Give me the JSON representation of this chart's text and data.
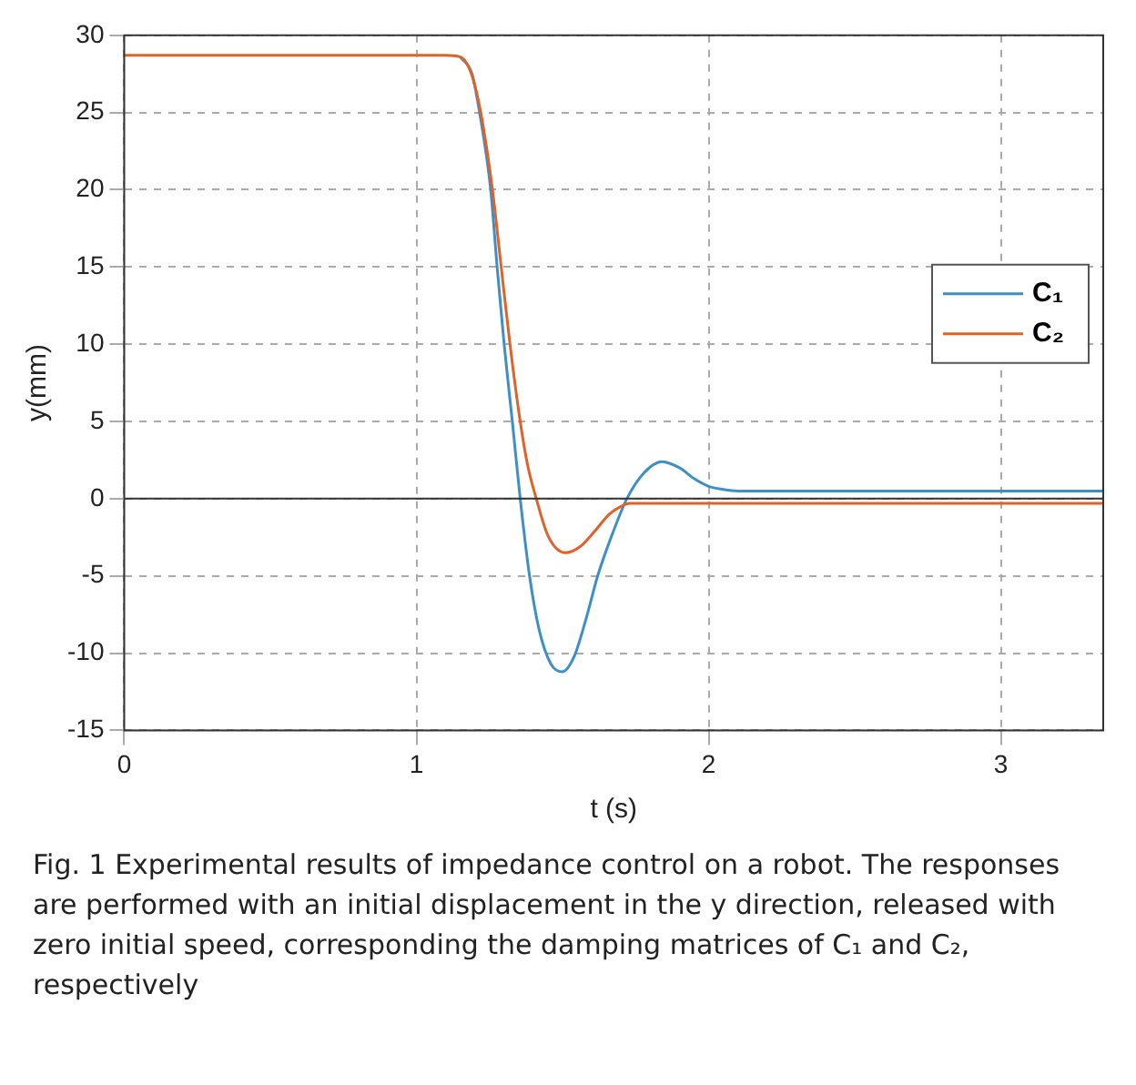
{
  "chart_data": {
    "type": "line",
    "xlabel": "t (s)",
    "ylabel": "y(mm)",
    "xlim": [
      0,
      3.35
    ],
    "xticks": [
      0,
      1,
      2,
      3
    ],
    "ylim": [
      -15,
      30
    ],
    "yticks": [
      -15,
      -10,
      -5,
      0,
      5,
      10,
      15,
      20,
      25,
      30
    ],
    "grid": true,
    "legend": "right",
    "marker": "none",
    "line_style": "solid",
    "ref_lines": [
      {
        "axis": "y",
        "value": 0,
        "color": "#333333"
      }
    ],
    "annotations": [
      "Fig. 1 Experimental results of impedance control on a robot. The responses are performed with an initial displacement in the y direction, released with zero initial speed, corresponding the damping matrices of C₁ and C₂, respectively"
    ],
    "series": [
      {
        "name": "C₁",
        "color": "#3d8fc6",
        "x": [
          1.15,
          1.19,
          1.216,
          1.254,
          1.276,
          1.3,
          1.328,
          1.355,
          1.387,
          1.42,
          1.46,
          1.5,
          1.54,
          1.58,
          1.62,
          1.67,
          1.72,
          1.78,
          1.84,
          1.9,
          1.95,
          2.0,
          2.05,
          2.1,
          2.5,
          3,
          3.35
        ],
        "values": [
          28.6,
          27.5,
          25,
          20,
          15,
          10,
          5,
          0,
          -5,
          -8.5,
          -10.7,
          -11.2,
          -10.2,
          -7.8,
          -5,
          -2.3,
          0,
          1.7,
          2.4,
          2.0,
          1.3,
          0.8,
          0.6,
          0.5,
          0.5,
          0.5,
          0.5
        ]
      },
      {
        "name": "C₂",
        "color": "#e0622a",
        "x": [
          0,
          0.5,
          1,
          1.1,
          1.15,
          1.19,
          1.22,
          1.26,
          1.29,
          1.32,
          1.355,
          1.38,
          1.41,
          1.45,
          1.51,
          1.56,
          1.61,
          1.66,
          1.7,
          1.73,
          1.8,
          2,
          2.5,
          3,
          3.35
        ],
        "values": [
          28.7,
          28.7,
          28.7,
          28.7,
          28.6,
          27.4,
          25,
          20,
          15,
          10,
          5,
          2.2,
          0,
          -2.4,
          -3.5,
          -3.1,
          -2.1,
          -1,
          -0.5,
          -0.3,
          -0.3,
          -0.3,
          -0.3,
          -0.3,
          -0.3
        ]
      }
    ]
  }
}
